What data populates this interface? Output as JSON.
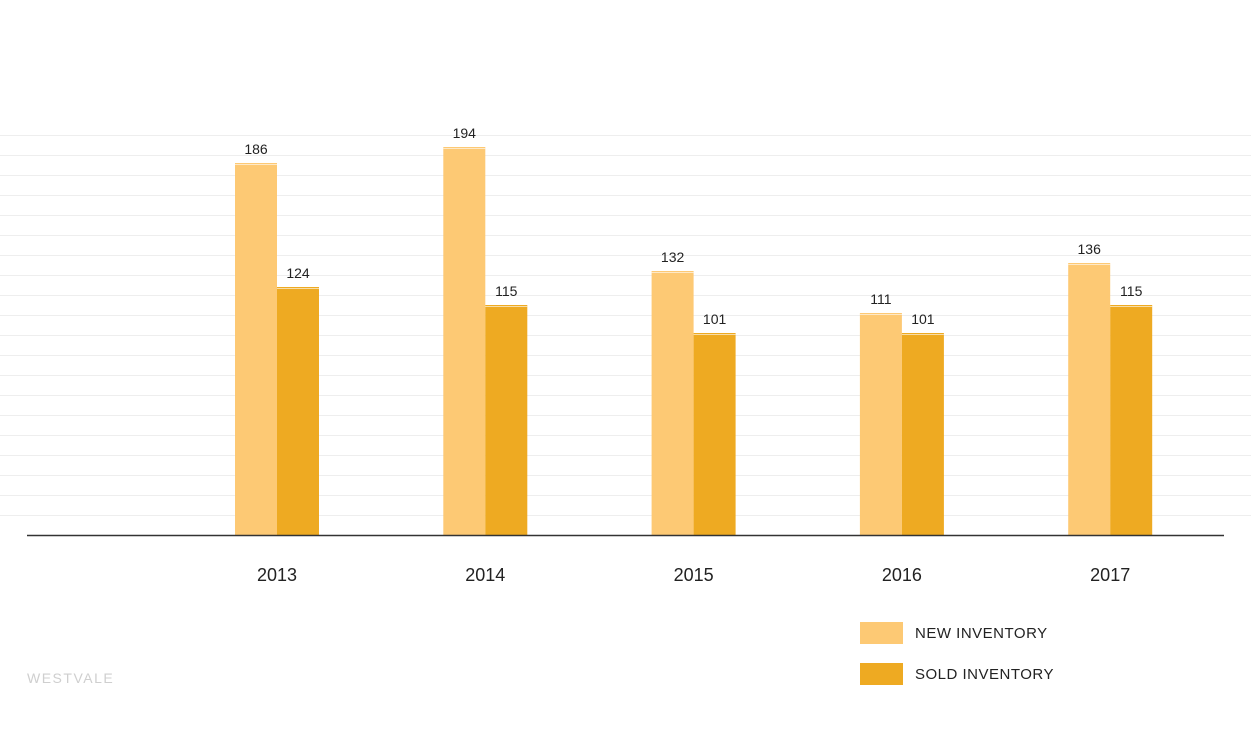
{
  "brand": "WESTVALE",
  "colors": {
    "new": "#FDC974",
    "sold": "#EEAA22",
    "axis": "#333333",
    "grid": "#eeeeee",
    "text": "#222222"
  },
  "legend": {
    "items": [
      {
        "label": "NEW INVENTORY",
        "color": "#FDC974"
      },
      {
        "label": "SOLD INVENTORY",
        "color": "#EEAA22"
      }
    ]
  },
  "chart_data": {
    "type": "bar",
    "categories": [
      "2013",
      "2014",
      "2015",
      "2016",
      "2017"
    ],
    "series": [
      {
        "name": "NEW INVENTORY",
        "color": "#FDC974",
        "values": [
          186,
          194,
          132,
          111,
          136
        ]
      },
      {
        "name": "SOLD INVENTORY",
        "color": "#EEAA22",
        "values": [
          124,
          115,
          101,
          101,
          115
        ]
      }
    ],
    "title": "",
    "xlabel": "",
    "ylabel": "",
    "ylim": [
      0,
      200
    ],
    "grid": true,
    "legend_position": "bottom-right"
  }
}
